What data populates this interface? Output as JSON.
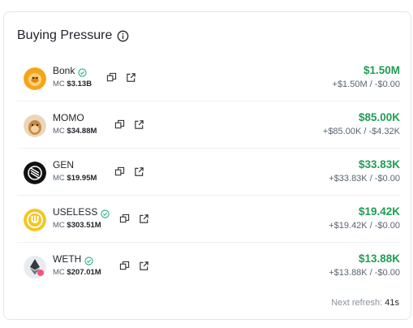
{
  "widget": {
    "title": "Buying Pressure",
    "info_icon": "info-circle-icon",
    "footer_label": "Next refresh:",
    "footer_value": "41s"
  },
  "colors": {
    "positive": "#1f9d55",
    "verified": "#22b07d",
    "muted": "#5b6470"
  },
  "tokens": [
    {
      "name": "Bonk",
      "verified": true,
      "mc_label": "MC",
      "mc": "$3.13B",
      "amount": "$1.50M",
      "flow": "+$1.50M / -$0.00"
    },
    {
      "name": "MOMO",
      "verified": false,
      "mc_label": "MC",
      "mc": "$34.88M",
      "amount": "$85.00K",
      "flow": "+$85.00K / -$4.32K"
    },
    {
      "name": "GEN",
      "verified": false,
      "mc_label": "MC",
      "mc": "$19.95M",
      "amount": "$33.83K",
      "flow": "+$33.83K / -$0.00"
    },
    {
      "name": "USELESS",
      "verified": true,
      "mc_label": "MC",
      "mc": "$303.51M",
      "amount": "$19.42K",
      "flow": "+$19.42K / -$0.00"
    },
    {
      "name": "WETH",
      "verified": true,
      "mc_label": "MC",
      "mc": "$207.01M",
      "amount": "$13.88K",
      "flow": "+$13.88K / -$0.00"
    }
  ]
}
